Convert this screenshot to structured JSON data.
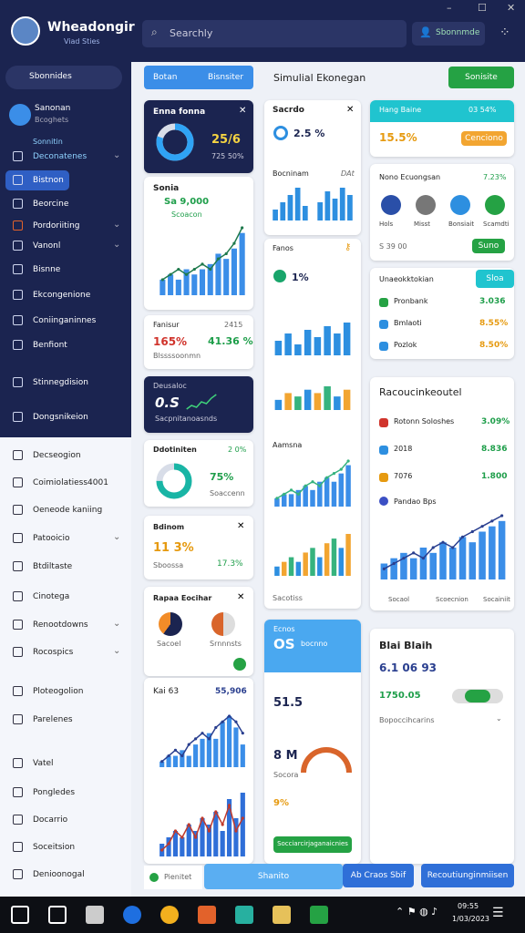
{
  "header": {
    "app_name": "Wheadongir",
    "app_subtitle": "Viad Sties",
    "search_placeholder": "Searchly",
    "account_button": "Sbonnmde",
    "window_controls": [
      "–",
      "☐",
      "✕"
    ]
  },
  "sidebar": {
    "search": "Sbonnides",
    "user_name": "Sanonan",
    "user_role": "Bcoghets",
    "section": "Sonnitin",
    "items_dark": [
      "Deconatenes",
      "Bistnon",
      "Beorcine",
      "Pordoriiting",
      "Vanonl",
      "Bisnne",
      "Ekcongenione",
      "Coniinganinnes",
      "Benfiont",
      "Stinnegdision",
      "Dongsnikeion"
    ],
    "items_light": [
      "Decseogion",
      "Coimiolatiess4001",
      "Oeneode kaniing",
      "Patooicio",
      "Btdiltaste",
      "Cinotega",
      "Renootdowns",
      "Rocospics",
      "Ploteogolion",
      "Parelenes",
      "Vatel",
      "Pongledes",
      "Docarrio",
      "Soceitsion",
      "Denioonogal"
    ]
  },
  "toolbar": {
    "tab1": "Botan",
    "tab2": "Bisnsiter",
    "heading": "Simulial Ekonegan",
    "action": "Sonisite"
  },
  "cards": {
    "a": {
      "title": "Enna fonna",
      "value": "25/6",
      "sub": "725 50%",
      "donut": 80
    },
    "b": {
      "title": "Sonia",
      "value": "Sa 9,000",
      "sub": "Scoacon",
      "chart": {
        "bars": [
          3,
          4,
          3,
          5,
          4,
          5,
          6,
          8,
          7,
          9,
          12
        ],
        "line": [
          3,
          4,
          5,
          4,
          5,
          6,
          5,
          7,
          8,
          10,
          13
        ],
        "color": "#3b8ee8",
        "line_color": "#1f7a4d"
      }
    },
    "c": {
      "title": "Fanisur",
      "tag": "2415",
      "v1": "165%",
      "v2": "41.36 %",
      "sub": "Blssssoonmn"
    },
    "d": {
      "title": "Deusaloc",
      "value": "0.S",
      "sub": "Sacpnitanoasnds",
      "chart": {
        "line": [
          2,
          3,
          2.5,
          4,
          3.5,
          5,
          6
        ],
        "line_color": "#3fd27a"
      }
    },
    "e": {
      "title": "Ddotiniten",
      "tag": "2 0%",
      "value": "75%",
      "sub": "Soaccenn",
      "donut": 75
    },
    "f": {
      "title": "Bdinom",
      "value": "11 3%",
      "sub": "Sboossa",
      "v2": "17.3%"
    },
    "g": {
      "title": "Rapaa Eocihar",
      "l1": "Sacoel",
      "l2": "Srnnnsts"
    },
    "h": {
      "title": "Kai 63",
      "value": "55,906",
      "chart1": {
        "bars": [
          1,
          2,
          2,
          3,
          2,
          4,
          5,
          6,
          5,
          8,
          9,
          7,
          4
        ],
        "line": [
          1,
          2,
          3,
          2,
          4,
          5,
          6,
          5,
          7,
          8,
          9,
          8,
          6
        ],
        "color": "#3b8ee8",
        "line_color": "#2a3f8f"
      },
      "chart2": {
        "bars": [
          2,
          3,
          4,
          3,
          5,
          4,
          6,
          5,
          7,
          4,
          9,
          6,
          10
        ],
        "line": [
          1,
          2,
          4,
          3,
          5,
          3,
          6,
          4,
          7,
          5,
          8,
          4,
          6
        ],
        "color": "#2f6fd8",
        "line_color": "#c0392b"
      }
    },
    "i": {
      "title": "Sacrdo",
      "value": "2.5 %",
      "sub": "Bocninam",
      "tag": "DAt",
      "chart": {
        "bars": [
          3,
          5,
          7,
          9,
          4,
          0,
          5,
          8,
          6,
          9,
          7
        ],
        "color": "#2d8fe0"
      }
    },
    "j": {
      "title": "Fanos",
      "value": "1%",
      "sub": "Aamsna",
      "footer": "Sacotiss",
      "chart1": {
        "bars": [
          4,
          6,
          3,
          7,
          5,
          8,
          6,
          9
        ],
        "color": "#2d8fe0"
      },
      "chart2": {
        "bars": [
          3,
          5,
          4,
          6,
          5,
          7,
          4,
          6
        ],
        "colors": [
          "#2d8fe0",
          "#f2a531",
          "#36b37e"
        ]
      },
      "chart3": {
        "bars": [
          2,
          3,
          3,
          4,
          5,
          4,
          6,
          7,
          6,
          8,
          10
        ],
        "line": [
          2,
          3,
          4,
          3,
          5,
          6,
          5,
          7,
          8,
          9,
          11
        ],
        "color": "#3b8ee8",
        "line_color": "#36b37e"
      },
      "chart4": {
        "bars": [
          2,
          3,
          4,
          3,
          5,
          6,
          4,
          7,
          8,
          6,
          9
        ],
        "colors": [
          "#2d8fe0",
          "#f2a531",
          "#36b37e"
        ]
      }
    },
    "k": {
      "title": "Ecnos",
      "value": "OS",
      "sub": "bocnno",
      "v2": "51.5",
      "v3": "8 M",
      "v4": "9%",
      "l1": "Socora",
      "button": "Socciarcirjaganaicnies"
    },
    "l": {
      "title": "Hang Baine",
      "tag": "03 54%",
      "value": "15.5%",
      "pill": "Cenciono"
    },
    "m": {
      "title": "Nono Ecuongsan",
      "tag": "7.23%",
      "icons": [
        "Hols",
        "Misst",
        "Bonsiait",
        "Scamdti"
      ],
      "value": "S 39 00",
      "button": "Suno"
    },
    "n": {
      "title": "Unaeokktokian",
      "badge": "Sloa",
      "rows": [
        [
          "Pronbank",
          "3.036"
        ],
        [
          "Bmlaoti",
          "8.55%"
        ],
        [
          "Pozlok",
          "8.50%"
        ]
      ]
    },
    "o": {
      "title": "Racoucinkeoutel",
      "rows": [
        [
          "Rotonn Soloshes",
          "3.09%"
        ],
        [
          "2018",
          "8.836"
        ],
        [
          "7076",
          "1.800"
        ]
      ],
      "sub": "Pandao Bps",
      "chart": {
        "bars": [
          3,
          4,
          5,
          4,
          6,
          5,
          7,
          6,
          8,
          7,
          9,
          10,
          11
        ],
        "line": [
          2,
          3,
          4,
          5,
          4,
          6,
          7,
          6,
          8,
          9,
          10,
          11,
          12
        ],
        "color": "#3b8ee8",
        "line_color": "#2a3f8f"
      },
      "foot": [
        "Socaol",
        "Scoecnion",
        "Socainiit"
      ]
    },
    "p": {
      "title": "Blai Blaih",
      "value": "6.1 06 93",
      "v2": "1750.05",
      "sub": "Bopoccihcarins"
    }
  },
  "bottom": {
    "left": "Pienitet",
    "center": "Shanito",
    "b1": "Ab Craos Sbif",
    "b2": "Recoutiunginmiisen"
  },
  "taskbar": {
    "time": "09:55",
    "date": "1/03/2023"
  }
}
